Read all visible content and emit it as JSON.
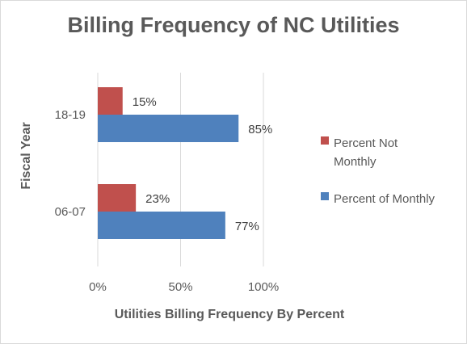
{
  "chart_data": {
    "type": "bar",
    "orientation": "horizontal",
    "title": "Billing Frequency of NC Utilities",
    "xlabel": "Utilities Billing Frequency By Percent",
    "ylabel": "Fiscal Year",
    "categories": [
      "06-07",
      "18-19"
    ],
    "series": [
      {
        "name": "Percent Not Monthly",
        "values": [
          23,
          15
        ],
        "labels": [
          "23%",
          "15%"
        ],
        "color": "#c0504d"
      },
      {
        "name": "Percent of Monthly",
        "values": [
          77,
          85
        ],
        "labels": [
          "77%",
          "85%"
        ],
        "color": "#4f81bd"
      }
    ],
    "xlim": [
      0,
      100
    ],
    "xticks": [
      0,
      50,
      100
    ],
    "xtick_labels": [
      "0%",
      "50%",
      "100%"
    ],
    "grid": true,
    "legend_position": "right",
    "legend": [
      {
        "lines": [
          "Percent Not",
          "Monthly"
        ],
        "color": "#c0504d"
      },
      {
        "lines": [
          "Percent of Monthly"
        ],
        "color": "#4f81bd"
      }
    ]
  }
}
